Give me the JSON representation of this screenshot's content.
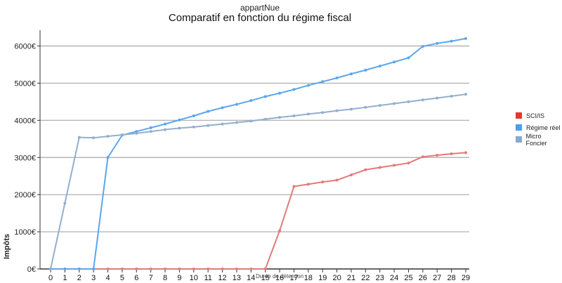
{
  "chart_data": {
    "type": "line",
    "subtitle": "appartNue",
    "title": "Comparatif en fonction du régime fiscal",
    "xlabel": "Durée de détention",
    "ylabel": "Impôts",
    "x": [
      0,
      1,
      2,
      3,
      4,
      5,
      6,
      7,
      8,
      9,
      10,
      11,
      12,
      13,
      14,
      15,
      16,
      17,
      18,
      19,
      20,
      21,
      22,
      23,
      24,
      25,
      26,
      27,
      28,
      29
    ],
    "ylim": [
      0,
      6800
    ],
    "yticks": [
      0,
      1000,
      2000,
      3000,
      4000,
      5000,
      6000
    ],
    "ytick_labels": [
      "0€",
      "1000€",
      "2000€",
      "3000€",
      "4000€",
      "5000€",
      "6000€"
    ],
    "grid": true,
    "legend_position": "right",
    "series": [
      {
        "name": "SCI/IS",
        "color": "#e03a2e",
        "line_color": "#e07b79",
        "values": [
          0,
          0,
          0,
          0,
          0,
          0,
          0,
          0,
          0,
          0,
          0,
          0,
          0,
          0,
          0,
          0,
          1030,
          2220,
          2280,
          2340,
          2390,
          2530,
          2670,
          2730,
          2790,
          2850,
          3020,
          3060,
          3100,
          3130
        ]
      },
      {
        "name": "Régime réel",
        "color": "#4a9ef0",
        "line_color": "#5aa6ee",
        "values": [
          0,
          0,
          0,
          0,
          3000,
          3600,
          3700,
          3800,
          3900,
          4010,
          4120,
          4240,
          4340,
          4430,
          4530,
          4640,
          4730,
          4830,
          4940,
          5040,
          5140,
          5250,
          5350,
          5460,
          5570,
          5680,
          5990,
          6070,
          6130,
          6200
        ]
      },
      {
        "name": "Micro Foncier",
        "color": "#8aa9cc",
        "line_color": "#94aecd",
        "values": [
          0,
          1770,
          3540,
          3530,
          3570,
          3610,
          3650,
          3700,
          3750,
          3790,
          3820,
          3860,
          3900,
          3940,
          3980,
          4030,
          4080,
          4120,
          4170,
          4210,
          4260,
          4300,
          4350,
          4400,
          4450,
          4500,
          4550,
          4600,
          4650,
          4700
        ]
      }
    ]
  }
}
